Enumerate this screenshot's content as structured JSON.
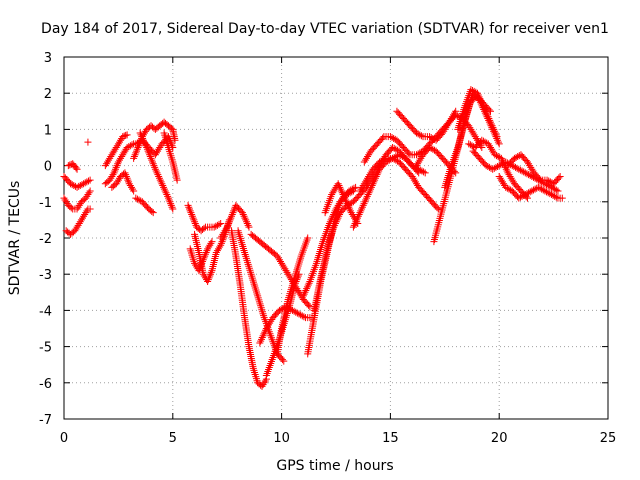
{
  "chart_data": {
    "type": "scatter",
    "title": "Day 184 of 2017, Sidereal Day-to-day VTEC variation (SDTVAR) for receiver ven1",
    "xlabel": "GPS time / hours",
    "ylabel": "SDTVAR / TECUs",
    "xlim": [
      0,
      25
    ],
    "ylim": [
      -7,
      3
    ],
    "xticks": [
      0,
      5,
      10,
      15,
      20,
      25
    ],
    "yticks": [
      -7,
      -6,
      -5,
      -4,
      -3,
      -2,
      -1,
      0,
      1,
      2,
      3
    ],
    "xtick_labels": [
      "0",
      "5",
      "10",
      "15",
      "20",
      "25"
    ],
    "ytick_labels": [
      "-7",
      "-6",
      "-5",
      "-4",
      "-3",
      "-2",
      "-1",
      "0",
      "1",
      "2",
      "3"
    ],
    "grid": true,
    "marker": "+",
    "color": "#ff0000",
    "series": [
      {
        "x": [
          0.0,
          0.3,
          0.6,
          0.9,
          1.2
        ],
        "y": [
          -0.3,
          -0.5,
          -0.6,
          -0.5,
          -0.4
        ]
      },
      {
        "x": [
          0.0,
          0.2,
          0.4,
          0.6,
          0.8,
          1.0,
          1.2
        ],
        "y": [
          -0.9,
          -1.1,
          -1.2,
          -1.2,
          -1.0,
          -0.9,
          -0.7
        ]
      },
      {
        "x": [
          0.1,
          0.3,
          0.5,
          0.7,
          0.9,
          1.1,
          1.2
        ],
        "y": [
          -1.8,
          -1.9,
          -1.8,
          -1.6,
          -1.4,
          -1.2,
          -1.2
        ]
      },
      {
        "x": [
          0.2,
          0.4,
          0.6
        ],
        "y": [
          0.0,
          0.05,
          -0.1
        ]
      },
      {
        "x": [
          1.1
        ],
        "y": [
          0.65
        ]
      },
      {
        "x": [
          1.9,
          2.2,
          2.5,
          2.7,
          2.9
        ],
        "y": [
          0.0,
          0.3,
          0.6,
          0.8,
          0.85
        ]
      },
      {
        "x": [
          1.9,
          2.1,
          2.3,
          2.5,
          2.7,
          2.9,
          3.2
        ],
        "y": [
          -0.5,
          -0.4,
          -0.2,
          0.1,
          0.3,
          0.5,
          0.6
        ]
      },
      {
        "x": [
          2.2,
          2.4,
          2.6,
          2.8,
          3.0,
          3.2
        ],
        "y": [
          -0.6,
          -0.5,
          -0.3,
          -0.2,
          -0.5,
          -0.7
        ]
      },
      {
        "x": [
          3.2,
          3.4,
          3.6,
          3.8,
          4.0,
          4.2,
          4.4,
          4.6,
          4.8,
          5.0,
          5.1
        ],
        "y": [
          0.2,
          0.5,
          0.8,
          1.0,
          1.1,
          1.0,
          1.1,
          1.2,
          1.1,
          1.0,
          0.7
        ]
      },
      {
        "x": [
          3.3,
          3.6,
          3.9,
          4.2,
          4.5,
          4.8,
          5.0
        ],
        "y": [
          0.6,
          0.7,
          0.5,
          0.3,
          0.6,
          0.8,
          0.5
        ]
      },
      {
        "x": [
          3.5,
          3.8,
          4.0,
          4.2,
          4.5,
          4.8,
          5.0
        ],
        "y": [
          0.9,
          0.5,
          0.2,
          -0.1,
          -0.5,
          -0.9,
          -1.2
        ]
      },
      {
        "x": [
          4.6,
          4.8,
          5.0,
          5.2
        ],
        "y": [
          0.9,
          0.5,
          0.1,
          -0.4
        ]
      },
      {
        "x": [
          3.3,
          3.6,
          3.9,
          4.1
        ],
        "y": [
          -0.9,
          -1.0,
          -1.2,
          -1.3
        ]
      },
      {
        "x": [
          5.7,
          5.9,
          6.1,
          6.3,
          6.5,
          6.7,
          6.9,
          7.2
        ],
        "y": [
          -1.1,
          -1.4,
          -1.7,
          -1.8,
          -1.7,
          -1.7,
          -1.7,
          -1.6
        ]
      },
      {
        "x": [
          5.8,
          6.0,
          6.2,
          6.4,
          6.6,
          6.8
        ],
        "y": [
          -2.3,
          -2.7,
          -2.9,
          -2.6,
          -2.3,
          -2.1
        ]
      },
      {
        "x": [
          6.0,
          6.2,
          6.4,
          6.6,
          6.8,
          7.0,
          7.2,
          7.4,
          7.6
        ],
        "y": [
          -1.9,
          -2.4,
          -3.0,
          -3.2,
          -2.9,
          -2.4,
          -2.2,
          -1.9,
          -1.5
        ]
      },
      {
        "x": [
          7.2,
          7.5,
          7.7,
          7.9,
          8.2,
          8.5
        ],
        "y": [
          -2.0,
          -1.7,
          -1.4,
          -1.1,
          -1.3,
          -1.7
        ]
      },
      {
        "x": [
          7.7,
          7.9,
          8.1,
          8.3,
          8.5,
          8.7,
          8.9,
          9.1,
          9.3
        ],
        "y": [
          -1.8,
          -2.5,
          -3.3,
          -4.2,
          -5.0,
          -5.6,
          -6.0,
          -6.1,
          -5.9
        ]
      },
      {
        "x": [
          8.0,
          8.3,
          8.6,
          8.9,
          9.2,
          9.5,
          9.8,
          10.1
        ],
        "y": [
          -1.8,
          -2.4,
          -3.0,
          -3.6,
          -4.2,
          -4.7,
          -5.2,
          -5.4
        ]
      },
      {
        "x": [
          9.0,
          9.3,
          9.6,
          9.9,
          10.2,
          10.5,
          10.8,
          11.1,
          11.4
        ],
        "y": [
          -4.9,
          -4.5,
          -4.2,
          -4.0,
          -3.9,
          -4.0,
          -4.1,
          -4.2,
          -4.2
        ]
      },
      {
        "x": [
          9.3,
          9.6,
          9.9,
          10.2,
          10.4,
          10.6,
          10.8
        ],
        "y": [
          -5.8,
          -5.3,
          -4.8,
          -4.2,
          -3.8,
          -3.3,
          -3.0
        ]
      },
      {
        "x": [
          8.6,
          9.0,
          9.4,
          9.8,
          10.1,
          10.4,
          10.7,
          11.0,
          11.3
        ],
        "y": [
          -1.9,
          -2.1,
          -2.3,
          -2.5,
          -2.8,
          -3.1,
          -3.4,
          -3.7,
          -3.9
        ]
      },
      {
        "x": [
          9.8,
          10.0,
          10.3,
          10.6,
          10.9,
          11.2
        ],
        "y": [
          -5.2,
          -4.5,
          -3.7,
          -3.1,
          -2.5,
          -2.0
        ]
      },
      {
        "x": [
          11.0,
          11.3,
          11.6,
          11.9,
          12.2,
          12.5,
          12.8,
          13.1,
          13.4
        ],
        "y": [
          -3.6,
          -3.2,
          -2.7,
          -2.1,
          -1.6,
          -1.2,
          -0.9,
          -0.7,
          -0.6
        ]
      },
      {
        "x": [
          11.2,
          11.5,
          11.8,
          12.1,
          12.4,
          12.7,
          13.0,
          13.3
        ],
        "y": [
          -5.2,
          -4.2,
          -3.2,
          -2.4,
          -1.6,
          -1.0,
          -0.8,
          -0.7
        ]
      },
      {
        "x": [
          11.5,
          11.8,
          12.1,
          12.4,
          12.7,
          13.0,
          13.3,
          13.6,
          13.9,
          14.2,
          14.5,
          14.8,
          15.1,
          15.4,
          15.7,
          16.0,
          16.3
        ],
        "y": [
          -4.0,
          -3.1,
          -2.3,
          -1.7,
          -1.3,
          -1.1,
          -1.0,
          -0.8,
          -0.6,
          -0.3,
          0.0,
          0.3,
          0.5,
          0.4,
          0.2,
          0.0,
          -0.2
        ]
      },
      {
        "x": [
          12.0,
          12.3,
          12.6,
          12.9,
          13.2,
          13.5
        ],
        "y": [
          -1.3,
          -0.8,
          -0.5,
          -0.9,
          -1.3,
          -1.6
        ]
      },
      {
        "x": [
          13.3,
          13.6,
          13.9,
          14.2,
          14.5,
          14.8,
          15.1,
          15.4,
          15.7,
          16.0,
          16.3,
          16.6
        ],
        "y": [
          -1.7,
          -1.3,
          -0.9,
          -0.5,
          -0.1,
          0.1,
          0.2,
          0.3,
          0.2,
          0.0,
          -0.1,
          -0.2
        ]
      },
      {
        "x": [
          13.8,
          14.1,
          14.4,
          14.7,
          15.0,
          15.3,
          15.6,
          15.9,
          16.2,
          16.5,
          16.8,
          17.1,
          17.4,
          17.7,
          18.0,
          18.3,
          18.6,
          18.9,
          19.2
        ],
        "y": [
          0.1,
          0.4,
          0.6,
          0.8,
          0.8,
          0.7,
          0.5,
          0.3,
          0.3,
          0.4,
          0.6,
          0.8,
          1.0,
          1.2,
          1.4,
          1.3,
          1.1,
          0.8,
          0.5
        ]
      },
      {
        "x": [
          13.6,
          13.9,
          14.2,
          14.5,
          14.8,
          15.1,
          15.4,
          15.7,
          16.0,
          16.3,
          16.6,
          16.9,
          17.2
        ],
        "y": [
          -0.7,
          -0.4,
          -0.1,
          0.1,
          0.2,
          0.2,
          0.1,
          -0.1,
          -0.3,
          -0.6,
          -0.8,
          -1.0,
          -1.2
        ]
      },
      {
        "x": [
          15.3,
          15.6,
          15.9,
          16.2,
          16.5,
          16.8,
          17.1,
          17.4,
          17.7,
          18.0
        ],
        "y": [
          1.5,
          1.3,
          1.1,
          0.9,
          0.8,
          0.8,
          0.7,
          0.9,
          1.2,
          1.5
        ]
      },
      {
        "x": [
          16.2,
          16.5,
          16.8,
          17.1,
          17.4,
          17.7,
          18.0
        ],
        "y": [
          0.0,
          0.3,
          0.5,
          0.4,
          0.2,
          0.0,
          -0.2
        ]
      },
      {
        "x": [
          17.0,
          17.3,
          17.6,
          17.9,
          18.2,
          18.5,
          18.8,
          19.1,
          19.4,
          19.7,
          20.0
        ],
        "y": [
          -2.1,
          -1.4,
          -0.7,
          0.0,
          0.7,
          1.4,
          2.0,
          1.8,
          1.4,
          1.0,
          0.6
        ]
      },
      {
        "x": [
          17.5,
          17.8,
          18.1,
          18.4,
          18.7,
          19.0,
          19.3,
          19.6
        ],
        "y": [
          -0.6,
          0.0,
          0.5,
          1.2,
          1.8,
          1.9,
          1.7,
          1.5
        ]
      },
      {
        "x": [
          18.1,
          18.4,
          18.7,
          19.0,
          19.3,
          19.6,
          19.9
        ],
        "y": [
          1.0,
          1.6,
          2.1,
          2.0,
          1.6,
          1.2,
          0.8
        ]
      },
      {
        "x": [
          18.6,
          18.9,
          19.2,
          19.5,
          19.8,
          20.1,
          20.4,
          20.7,
          21.0,
          21.3
        ],
        "y": [
          0.6,
          0.5,
          0.7,
          0.6,
          0.3,
          0.2,
          -0.2,
          -0.5,
          -0.7,
          -0.9
        ]
      },
      {
        "x": [
          18.8,
          19.1,
          19.4,
          19.7,
          20.0,
          20.3,
          20.6,
          20.9,
          21.2,
          21.5,
          21.8,
          22.1,
          22.4,
          22.7
        ],
        "y": [
          0.4,
          0.2,
          0.0,
          -0.1,
          0.0,
          0.1,
          0.0,
          -0.1,
          -0.2,
          -0.3,
          -0.4,
          -0.5,
          -0.6,
          -0.7
        ]
      },
      {
        "x": [
          20.0,
          20.3,
          20.6,
          20.9,
          21.2,
          21.5,
          21.8,
          22.1,
          22.4,
          22.7,
          22.9
        ],
        "y": [
          -0.3,
          -0.6,
          -0.7,
          -0.9,
          -0.8,
          -0.7,
          -0.6,
          -0.7,
          -0.8,
          -0.9,
          -0.9
        ]
      },
      {
        "x": [
          20.4,
          20.7,
          21.0,
          21.3,
          21.6,
          21.9,
          22.2,
          22.5,
          22.8
        ],
        "y": [
          0.0,
          0.2,
          0.3,
          0.1,
          -0.2,
          -0.4,
          -0.4,
          -0.5,
          -0.3
        ]
      }
    ]
  }
}
